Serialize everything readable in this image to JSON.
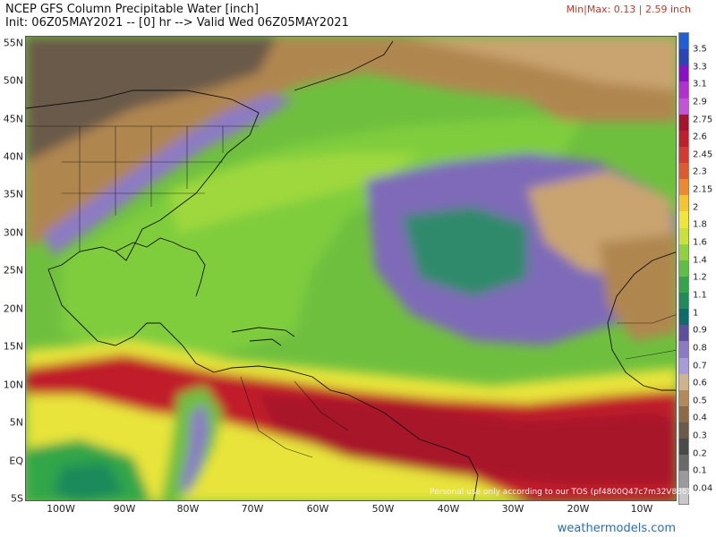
{
  "header": {
    "title": "NCEP GFS Column Precipitable Water [inch]",
    "subtitle": "Init: 06Z05MAY2021 -- [0] hr --> Valid Wed 06Z05MAY2021",
    "minmax": "Min|Max: 0.13 | 2.59 inch"
  },
  "map": {
    "lat_labels": [
      "55N",
      "50N",
      "45N",
      "40N",
      "35N",
      "30N",
      "25N",
      "20N",
      "15N",
      "10N",
      "5N",
      "EQ",
      "5S"
    ],
    "lon_labels": [
      "100W",
      "90W",
      "80W",
      "70W",
      "60W",
      "50W",
      "40W",
      "30W",
      "20W",
      "10W"
    ]
  },
  "colorbar": {
    "labels": [
      "3.5",
      "3.3",
      "3.1",
      "2.9",
      "2.75",
      "2.6",
      "2.45",
      "2.3",
      "2.15",
      "2",
      "1.8",
      "1.6",
      "1.4",
      "1.2",
      "1.1",
      "1",
      "0.9",
      "0.8",
      "0.7",
      "0.6",
      "0.5",
      "0.4",
      "0.3",
      "0.2",
      "0.1",
      "0.04"
    ],
    "colors": [
      "#1f5fd6",
      "#2a45b8",
      "#8a10c8",
      "#b42fd0",
      "#c354d8",
      "#a8142b",
      "#c01e2c",
      "#d63a2e",
      "#e05a2f",
      "#ee8a2e",
      "#f5c431",
      "#f0e63a",
      "#c8e23a",
      "#8fd23e",
      "#5fbf45",
      "#33a64a",
      "#1f8a5a",
      "#0f6b6b",
      "#5d4fa0",
      "#8c7ac4",
      "#a79bd8",
      "#cdb48c",
      "#b28a5a",
      "#8c6a45",
      "#6b5a4a",
      "#4a4a4a",
      "#6a6a6a",
      "#9a9a9a",
      "#c8c8c8"
    ]
  },
  "footer": {
    "disclaimer": "Personal use only according to our TOS (pf4800Q47c7m32V886)",
    "brand": "weathermodels.com"
  }
}
